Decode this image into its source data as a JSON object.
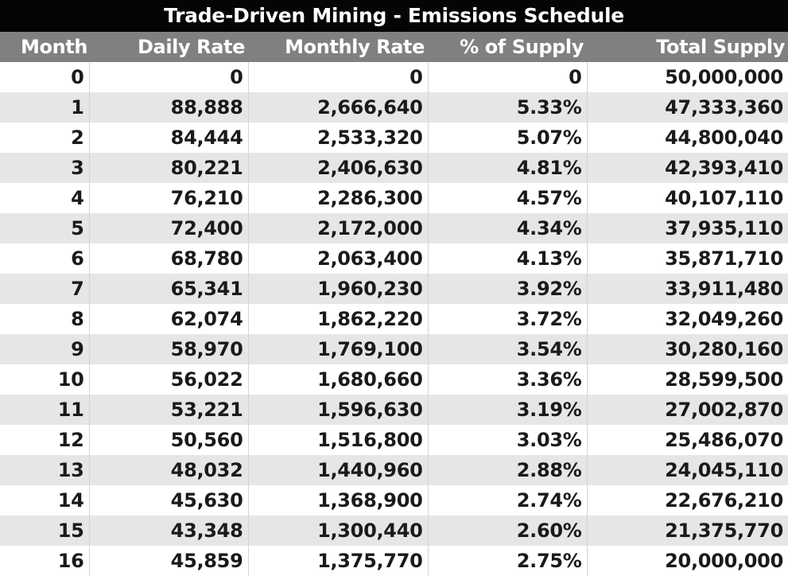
{
  "chart_data": {
    "type": "table",
    "title": "Trade-Driven Mining - Emissions Schedule",
    "columns": [
      "Month",
      "Daily Rate",
      "Monthly Rate",
      "% of Supply",
      "Total Supply"
    ],
    "rows": [
      [
        "0",
        "0",
        "0",
        "0",
        "50,000,000"
      ],
      [
        "1",
        "88,888",
        "2,666,640",
        "5.33%",
        "47,333,360"
      ],
      [
        "2",
        "84,444",
        "2,533,320",
        "5.07%",
        "44,800,040"
      ],
      [
        "3",
        "80,221",
        "2,406,630",
        "4.81%",
        "42,393,410"
      ],
      [
        "4",
        "76,210",
        "2,286,300",
        "4.57%",
        "40,107,110"
      ],
      [
        "5",
        "72,400",
        "2,172,000",
        "4.34%",
        "37,935,110"
      ],
      [
        "6",
        "68,780",
        "2,063,400",
        "4.13%",
        "35,871,710"
      ],
      [
        "7",
        "65,341",
        "1,960,230",
        "3.92%",
        "33,911,480"
      ],
      [
        "8",
        "62,074",
        "1,862,220",
        "3.72%",
        "32,049,260"
      ],
      [
        "9",
        "58,970",
        "1,769,100",
        "3.54%",
        "30,280,160"
      ],
      [
        "10",
        "56,022",
        "1,680,660",
        "3.36%",
        "28,599,500"
      ],
      [
        "11",
        "53,221",
        "1,596,630",
        "3.19%",
        "27,002,870"
      ],
      [
        "12",
        "50,560",
        "1,516,800",
        "3.03%",
        "25,486,070"
      ],
      [
        "13",
        "48,032",
        "1,440,960",
        "2.88%",
        "24,045,110"
      ],
      [
        "14",
        "45,630",
        "1,368,900",
        "2.74%",
        "22,676,210"
      ],
      [
        "15",
        "43,348",
        "1,300,440",
        "2.60%",
        "21,375,770"
      ],
      [
        "16",
        "45,859",
        "1,375,770",
        "2.75%",
        "20,000,000"
      ]
    ]
  },
  "colors": {
    "title_background": "#050505",
    "header_background": "#808080",
    "stripe_background": "#e6e6e6",
    "text": "#1a1a1a"
  }
}
